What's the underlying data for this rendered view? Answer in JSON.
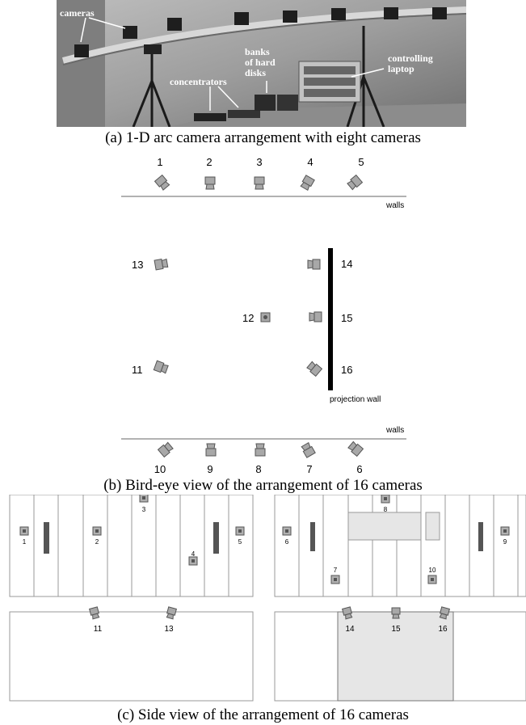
{
  "figure_a": {
    "caption": "(a) 1-D arc camera arrangement with eight cameras",
    "labels": {
      "cameras": "cameras",
      "concentrators": "concentrators",
      "banks_line1": "banks",
      "banks_line2": "of hard",
      "banks_line3": "disks",
      "laptop_line1": "controlling",
      "laptop_line2": "laptop"
    }
  },
  "figure_b": {
    "caption": "(b) Bird-eye view of the arrangement of 16 cameras",
    "walls_top": "walls",
    "walls_bottom": "walls",
    "projection_wall": "projection wall",
    "top_cameras": [
      "1",
      "2",
      "3",
      "4",
      "5"
    ],
    "bottom_cameras": [
      "10",
      "9",
      "8",
      "7",
      "6"
    ],
    "side_cameras": [
      "13",
      "14",
      "12",
      "15",
      "11",
      "16"
    ]
  },
  "figure_c": {
    "caption": "(c) Side view of the arrangement of 16 cameras",
    "left_top_cameras": [
      "1",
      "2",
      "3",
      "4",
      "5"
    ],
    "right_top_cameras": [
      "6",
      "7",
      "8",
      "10",
      "9"
    ],
    "left_bottom_cameras": [
      "11",
      "13"
    ],
    "right_bottom_cameras": [
      "14",
      "15",
      "16"
    ]
  },
  "colors": {
    "camera_fill": "#a8a8a8",
    "wall": "#000000",
    "line": "#999999",
    "panel_fill": "#e6e6e6"
  }
}
